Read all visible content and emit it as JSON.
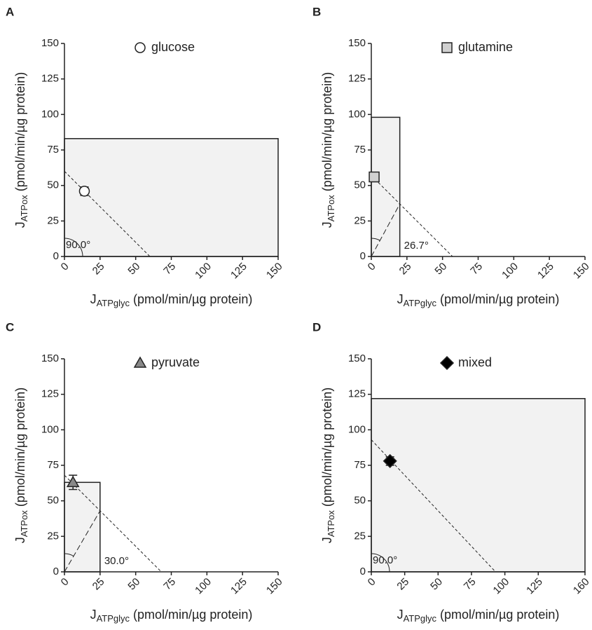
{
  "chart_data": [
    {
      "type": "scatter",
      "panel": "A",
      "x_label": {
        "main": "J",
        "sub": "ATPglyc",
        "unit": " (pmol/min/µg protein)"
      },
      "y_label": {
        "main": "J",
        "sub": "ATPox",
        "unit": " (pmol/min/µg protein)"
      },
      "series": [
        {
          "name": "glucose",
          "marker": "circle",
          "color": "#ffffff",
          "x": [
            14
          ],
          "values": [
            46
          ],
          "errors": [
            3
          ]
        }
      ],
      "box_x": 150,
      "box_y": 83,
      "intercept": 60,
      "angle_label": "90.0°",
      "xlim": [
        0,
        150
      ],
      "ylim": [
        0,
        150
      ],
      "xticks": [
        0,
        25,
        50,
        75,
        100,
        125,
        150
      ],
      "yticks": [
        0,
        25,
        50,
        75,
        100,
        125,
        150
      ]
    },
    {
      "type": "scatter",
      "panel": "B",
      "x_label": {
        "main": "J",
        "sub": "ATPglyc",
        "unit": " (pmol/min/µg protein)"
      },
      "y_label": {
        "main": "J",
        "sub": "ATPox",
        "unit": " (pmol/min/µg protein)"
      },
      "series": [
        {
          "name": "glutamine",
          "marker": "square",
          "color": "#d0d0d0",
          "x": [
            2
          ],
          "values": [
            56
          ],
          "errors": [
            2
          ]
        }
      ],
      "box_x": 20,
      "box_y": 98,
      "intercept": 57,
      "angle_label": "26.7°",
      "xlim": [
        0,
        150
      ],
      "ylim": [
        0,
        150
      ],
      "xticks": [
        0,
        25,
        50,
        75,
        100,
        125,
        150
      ],
      "yticks": [
        0,
        25,
        50,
        75,
        100,
        125,
        150
      ]
    },
    {
      "type": "scatter",
      "panel": "C",
      "x_label": {
        "main": "J",
        "sub": "ATPglyc",
        "unit": " (pmol/min/µg protein)"
      },
      "y_label": {
        "main": "J",
        "sub": "ATPox",
        "unit": " (pmol/min/µg protein)"
      },
      "series": [
        {
          "name": "pyruvate",
          "marker": "triangle",
          "color": "#888888",
          "x": [
            6
          ],
          "values": [
            63
          ],
          "errors": [
            5
          ]
        }
      ],
      "box_x": 25,
      "box_y": 63,
      "intercept": 68,
      "angle_label": "30.0°",
      "xlim": [
        0,
        150
      ],
      "ylim": [
        0,
        150
      ],
      "xticks": [
        0,
        25,
        50,
        75,
        100,
        125,
        150
      ],
      "yticks": [
        0,
        25,
        50,
        75,
        100,
        125,
        150
      ]
    },
    {
      "type": "scatter",
      "panel": "D",
      "x_label": {
        "main": "J",
        "sub": "ATPglyc",
        "unit": " (pmol/min/µg protein)"
      },
      "y_label": {
        "main": "J",
        "sub": "ATPox",
        "unit": " (pmol/min/µg protein)"
      },
      "series": [
        {
          "name": "mixed",
          "marker": "diamond",
          "color": "#000000",
          "x": [
            14
          ],
          "values": [
            78
          ],
          "errors": [
            3
          ]
        }
      ],
      "box_x": 160,
      "box_y": 122,
      "intercept": 93,
      "angle_label": "90.0°",
      "xlim": [
        0,
        160
      ],
      "ylim": [
        0,
        150
      ],
      "xticks": [
        0,
        25,
        50,
        75,
        100,
        125,
        160
      ],
      "yticks": [
        0,
        25,
        50,
        75,
        100,
        125,
        150
      ]
    }
  ]
}
